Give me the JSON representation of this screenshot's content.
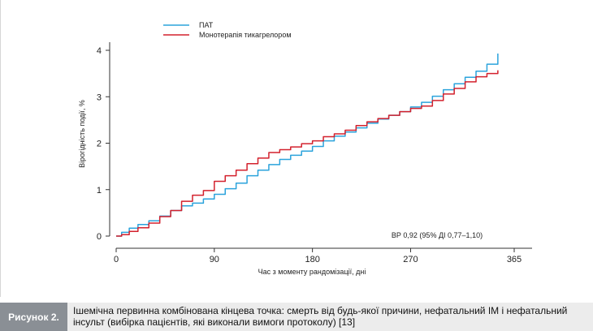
{
  "chart_data": {
    "type": "line",
    "title": "",
    "xlabel": "Час з моменту рандомізації, дні",
    "ylabel": "Вірогідність події, %",
    "xlim": [
      0,
      365
    ],
    "ylim": [
      0,
      4
    ],
    "x_ticks": [
      0,
      90,
      180,
      270,
      365
    ],
    "y_ticks": [
      0,
      1,
      2,
      3,
      4
    ],
    "grid": false,
    "legend_position": "top-left",
    "annotation": "ВР 0,92 (95% ДІ 0,77–1,10)",
    "series": [
      {
        "name": "ПАТ",
        "color": "#2ba3dc",
        "x": [
          0,
          5,
          12,
          20,
          30,
          40,
          50,
          60,
          70,
          80,
          90,
          100,
          110,
          120,
          130,
          140,
          150,
          160,
          170,
          180,
          190,
          200,
          210,
          220,
          230,
          240,
          250,
          260,
          270,
          280,
          290,
          300,
          310,
          320,
          330,
          340,
          350
        ],
        "y": [
          0,
          0.08,
          0.17,
          0.25,
          0.33,
          0.43,
          0.55,
          0.65,
          0.71,
          0.8,
          0.9,
          1.02,
          1.14,
          1.3,
          1.42,
          1.54,
          1.65,
          1.74,
          1.83,
          1.93,
          2.05,
          2.15,
          2.24,
          2.33,
          2.43,
          2.52,
          2.6,
          2.68,
          2.78,
          2.88,
          3.01,
          3.15,
          3.28,
          3.42,
          3.55,
          3.7,
          3.93
        ]
      },
      {
        "name": "Монотерапія тикагрелором",
        "color": "#d3212d",
        "x": [
          0,
          5,
          12,
          20,
          30,
          40,
          50,
          60,
          70,
          80,
          90,
          100,
          110,
          120,
          130,
          140,
          150,
          160,
          170,
          180,
          190,
          200,
          210,
          220,
          230,
          240,
          250,
          260,
          270,
          280,
          290,
          300,
          310,
          320,
          330,
          340,
          350
        ],
        "y": [
          0,
          0.03,
          0.1,
          0.18,
          0.28,
          0.42,
          0.55,
          0.75,
          0.88,
          0.98,
          1.18,
          1.3,
          1.42,
          1.56,
          1.68,
          1.8,
          1.86,
          1.92,
          1.99,
          2.05,
          2.14,
          2.2,
          2.28,
          2.38,
          2.46,
          2.53,
          2.6,
          2.68,
          2.75,
          2.8,
          2.92,
          3.06,
          3.18,
          3.32,
          3.43,
          3.5,
          3.57
        ]
      }
    ]
  },
  "caption": {
    "label": "Рисунок 2.",
    "text": "Ішемічна первинна комбінована кінцева точка: смерть від будь-якої причини, нефатальний ІМ і нефатальний інсульт (вибірка пацієнтів, які виконали вимоги протоколу) [13]"
  }
}
